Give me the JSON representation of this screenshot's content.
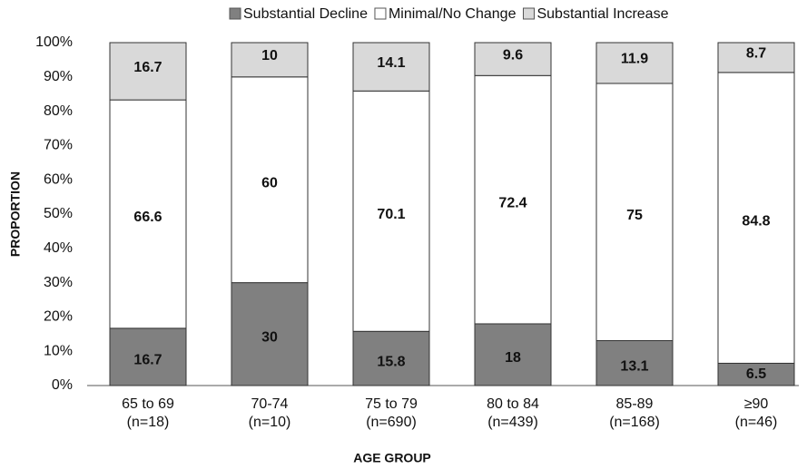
{
  "chart_data": {
    "type": "stacked_bar",
    "x_label": "AGE GROUP",
    "y_label": "PROPORTION",
    "categories": [
      "65 to 69\n(n=18)",
      "70-74\n(n=10)",
      "75 to 79\n(n=690)",
      "80 to 84\n(n=439)",
      "85-89\n(n=168)",
      "≥90\n(n=46)"
    ],
    "series": [
      {
        "name": "Substantial Decline",
        "color": "#808080",
        "values": [
          16.7,
          30,
          15.8,
          18,
          13.1,
          6.5
        ]
      },
      {
        "name": "Minimal/No Change",
        "color": "#ffffff",
        "values": [
          66.6,
          60,
          70.1,
          72.4,
          75,
          84.8
        ]
      },
      {
        "name": "Substantial Increase",
        "color": "#d9d9d9",
        "values": [
          16.7,
          10,
          14.1,
          9.6,
          11.9,
          8.7
        ]
      }
    ],
    "ylim": [
      0,
      100
    ],
    "yticks": [
      {
        "value": 0,
        "label": "0%"
      },
      {
        "value": 10,
        "label": "10%"
      },
      {
        "value": 20,
        "label": "20%"
      },
      {
        "value": 30,
        "label": "30%"
      },
      {
        "value": 40,
        "label": "40%"
      },
      {
        "value": 50,
        "label": "50%"
      },
      {
        "value": 60,
        "label": "60%"
      },
      {
        "value": 70,
        "label": "70%"
      },
      {
        "value": 80,
        "label": "80%"
      },
      {
        "value": 90,
        "label": "90%"
      },
      {
        "value": 100,
        "label": "100%"
      }
    ],
    "grid": false,
    "legend": "top"
  }
}
